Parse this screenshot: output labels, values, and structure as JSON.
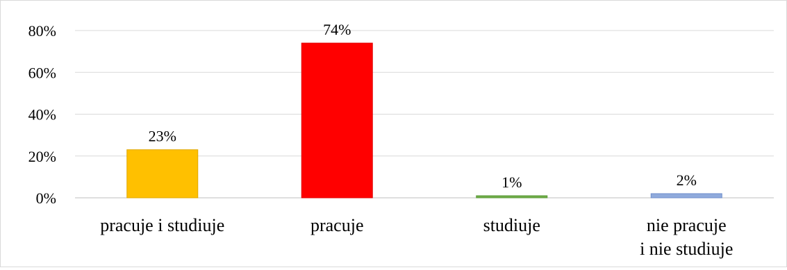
{
  "chart_data": {
    "type": "bar",
    "categories": [
      "pracuje i studiuje",
      "pracuje",
      "studiuje",
      "nie pracuje\ni nie studiuje"
    ],
    "values": [
      23,
      74,
      1,
      2
    ],
    "data_labels": [
      "23%",
      "74%",
      "1%",
      "2%"
    ],
    "colors": [
      "#FFC000",
      "#FF0000",
      "#70AD47",
      "#8FAADC"
    ],
    "bar_border_colors": [
      "#E0A800",
      "#E00000",
      "#5A9A3A",
      "#6F8FCB"
    ],
    "ylim": [
      0,
      80
    ],
    "yticks": [
      0,
      20,
      40,
      60,
      80
    ],
    "ytick_labels": [
      "0%",
      "20%",
      "40%",
      "60%",
      "80%"
    ],
    "grid": true,
    "legend": "none",
    "title": "",
    "xlabel": "",
    "ylabel": ""
  }
}
